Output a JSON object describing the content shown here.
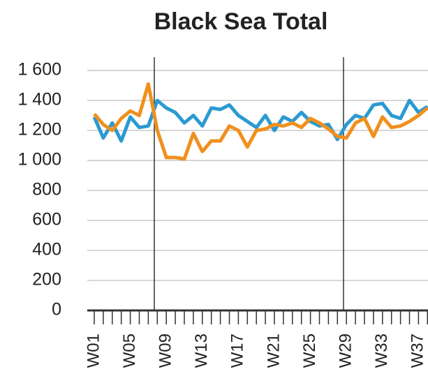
{
  "chart_data": {
    "type": "line",
    "title": "Black Sea Total",
    "categories": [
      "W01",
      null,
      null,
      null,
      "W05",
      null,
      null,
      null,
      "W09",
      null,
      null,
      null,
      "W13",
      null,
      null,
      null,
      "W17",
      null,
      null,
      null,
      "W21",
      null,
      null,
      null,
      "W25",
      null,
      null,
      null,
      "W29",
      null,
      null,
      null,
      "W33",
      null,
      null,
      null,
      "W37",
      null
    ],
    "series": [
      {
        "color": "#2b9ad1",
        "values": [
          1290,
          1150,
          1250,
          1130,
          1290,
          1220,
          1230,
          1400,
          1350,
          1320,
          1250,
          1300,
          1230,
          1350,
          1340,
          1370,
          1300,
          1260,
          1220,
          1300,
          1200,
          1290,
          1260,
          1320,
          1260,
          1230,
          1240,
          1140,
          1240,
          1300,
          1280,
          1370,
          1380,
          1300,
          1280,
          1400,
          1320,
          1360
        ]
      },
      {
        "color": "#f0901e",
        "values": [
          1310,
          1240,
          1200,
          1280,
          1330,
          1300,
          1510,
          1200,
          1020,
          1020,
          1010,
          1180,
          1060,
          1130,
          1130,
          1230,
          1200,
          1090,
          1200,
          1210,
          1240,
          1230,
          1250,
          1220,
          1280,
          1250,
          1210,
          1160,
          1150,
          1250,
          1280,
          1160,
          1290,
          1220,
          1230,
          1260,
          1300,
          1350
        ]
      }
    ],
    "ylim": [
      0,
      1600
    ],
    "yticks": [
      0,
      200,
      400,
      600,
      800,
      {
        "value": 1000,
        "label": "1 000"
      },
      {
        "value": 1200,
        "label": "1 200"
      },
      {
        "value": 1400,
        "label": "1 400"
      },
      {
        "value": 1600,
        "label": "1 600"
      }
    ],
    "grid": true
  }
}
